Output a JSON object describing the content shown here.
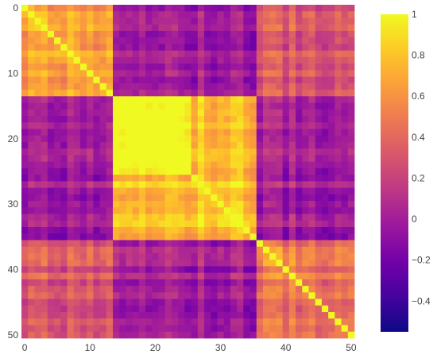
{
  "chart_data": {
    "type": "heatmap",
    "title": "",
    "xlabel": "",
    "ylabel": "",
    "x_range": [
      0,
      50
    ],
    "y_range": [
      0,
      50
    ],
    "y_reversed": true,
    "grid": false,
    "n_rows": 51,
    "n_cols": 51,
    "x_tick_labels": [
      "0",
      "10",
      "20",
      "30",
      "40",
      "50"
    ],
    "y_tick_labels": [
      "0",
      "10",
      "20",
      "30",
      "40",
      "50"
    ],
    "x_tick_values": [
      0,
      10,
      20,
      30,
      40,
      50
    ],
    "y_tick_values": [
      0,
      10,
      20,
      30,
      40,
      50
    ],
    "clusters": [
      {
        "range": [
          0,
          13
        ],
        "within": 0.62
      },
      {
        "range": [
          14,
          25
        ],
        "within": 0.97
      },
      {
        "range": [
          26,
          35
        ],
        "within": 0.8
      },
      {
        "range": [
          36,
          50
        ],
        "within": 0.45
      }
    ],
    "cluster_cross": [
      [
        0.62,
        -0.05,
        -0.02,
        0.3
      ],
      [
        -0.05,
        0.97,
        0.75,
        -0.02
      ],
      [
        -0.02,
        0.75,
        0.8,
        0.0
      ],
      [
        0.3,
        -0.02,
        0.0,
        0.45
      ]
    ],
    "diagonal": 1,
    "colorscale_name": "Plasma",
    "colorscale": [
      "#0d0887",
      "#46039f",
      "#7201a8",
      "#9c179e",
      "#bd3786",
      "#d8576b",
      "#ed7953",
      "#fb9f3a",
      "#fdca26",
      "#f0f921"
    ],
    "colorbar": {
      "zmin": -0.55,
      "zmax": 1,
      "tick_values": [
        1,
        0.8,
        0.6,
        0.4,
        0.2,
        0,
        -0.2,
        -0.4
      ],
      "tick_labels": [
        "1",
        "0.8",
        "0.6",
        "0.4",
        "0.2",
        "0",
        "−0.2",
        "−0.4"
      ]
    }
  }
}
